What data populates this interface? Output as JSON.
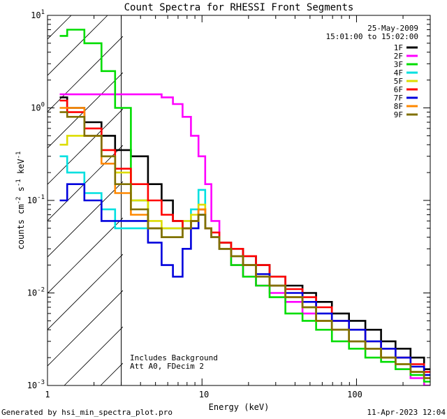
{
  "chart_data": {
    "type": "line",
    "title": "Count Spectra for RHESSI Front Segments",
    "xlabel": "Energy (keV)",
    "ylabel": "counts cm-2 s-1 keV-1",
    "xscale": "log",
    "yscale": "log",
    "xlim": [
      1,
      300
    ],
    "ylim": [
      0.001,
      10
    ],
    "x_tick_labels": [
      "1",
      "10",
      "100"
    ],
    "y_tick_labels": [
      "10-3",
      "10-2",
      "10-1",
      "100",
      "101"
    ],
    "date": "25-May-2009",
    "time_range": "15:01:00 to 15:02:00",
    "shaded_region_below_keV": 3,
    "annotation_lines": [
      "Includes Background",
      "Att A0, FDecim 2"
    ],
    "legend_position": "top-right",
    "energies_keV": [
      1.2,
      1.5,
      2,
      2.5,
      3,
      4,
      5,
      6,
      7,
      8,
      9,
      10,
      11,
      12,
      14,
      17,
      20,
      25,
      30,
      40,
      50,
      60,
      80,
      100,
      130,
      160,
      200,
      250,
      300
    ],
    "series": [
      {
        "name": "1F",
        "color": "#000000",
        "values": [
          1.3,
          1.0,
          0.7,
          0.5,
          0.35,
          0.3,
          0.15,
          0.1,
          0.06,
          0.05,
          0.06,
          0.08,
          0.05,
          0.04,
          0.035,
          0.03,
          0.025,
          0.02,
          0.015,
          0.012,
          0.01,
          0.008,
          0.006,
          0.005,
          0.004,
          0.003,
          0.0025,
          0.002,
          0.0015
        ]
      },
      {
        "name": "2F",
        "color": "#ff00ff",
        "values": [
          1.4,
          1.4,
          1.4,
          1.4,
          1.4,
          1.4,
          1.4,
          1.3,
          1.1,
          0.8,
          0.5,
          0.3,
          0.15,
          0.06,
          0.03,
          0.02,
          0.015,
          0.012,
          0.01,
          0.008,
          0.006,
          0.005,
          0.004,
          0.003,
          0.0025,
          0.002,
          0.0015,
          0.0012,
          0.001
        ]
      },
      {
        "name": "3F",
        "color": "#00dd00",
        "values": [
          6,
          7,
          5,
          2.5,
          1.0,
          0.1,
          0.05,
          0.04,
          0.04,
          0.05,
          0.06,
          0.07,
          0.05,
          0.04,
          0.03,
          0.02,
          0.015,
          0.012,
          0.009,
          0.006,
          0.005,
          0.004,
          0.003,
          0.0025,
          0.002,
          0.0018,
          0.0015,
          0.0013,
          0.0011
        ]
      },
      {
        "name": "4F",
        "color": "#00e0e0",
        "values": [
          0.3,
          0.2,
          0.12,
          0.08,
          0.05,
          0.05,
          0.05,
          0.05,
          0.05,
          0.06,
          0.08,
          0.13,
          0.05,
          0.04,
          0.03,
          0.025,
          0.02,
          0.015,
          0.012,
          0.009,
          0.007,
          0.005,
          0.004,
          0.003,
          0.0025,
          0.002,
          0.0017,
          0.0014,
          0.0012
        ]
      },
      {
        "name": "5F",
        "color": "#dddd00",
        "values": [
          0.4,
          0.5,
          0.5,
          0.3,
          0.2,
          0.1,
          0.06,
          0.05,
          0.05,
          0.06,
          0.07,
          0.09,
          0.05,
          0.04,
          0.03,
          0.025,
          0.02,
          0.015,
          0.012,
          0.009,
          0.007,
          0.005,
          0.004,
          0.003,
          0.0025,
          0.002,
          0.0017,
          0.0014,
          0.0012
        ]
      },
      {
        "name": "6F",
        "color": "#ff0000",
        "values": [
          1.2,
          0.9,
          0.6,
          0.35,
          0.22,
          0.15,
          0.1,
          0.07,
          0.06,
          0.05,
          0.06,
          0.08,
          0.05,
          0.045,
          0.035,
          0.03,
          0.025,
          0.02,
          0.015,
          0.011,
          0.009,
          0.007,
          0.005,
          0.004,
          0.003,
          0.0025,
          0.002,
          0.0017,
          0.0014
        ]
      },
      {
        "name": "7F",
        "color": "#0000dd",
        "values": [
          0.1,
          0.15,
          0.1,
          0.06,
          0.06,
          0.06,
          0.035,
          0.02,
          0.015,
          0.03,
          0.05,
          0.07,
          0.05,
          0.04,
          0.03,
          0.025,
          0.02,
          0.016,
          0.012,
          0.01,
          0.008,
          0.006,
          0.005,
          0.004,
          0.003,
          0.0025,
          0.002,
          0.0016,
          0.0013
        ]
      },
      {
        "name": "8F",
        "color": "#ff8800",
        "values": [
          1.0,
          1.0,
          0.5,
          0.25,
          0.12,
          0.07,
          0.05,
          0.04,
          0.04,
          0.05,
          0.06,
          0.08,
          0.05,
          0.04,
          0.03,
          0.025,
          0.02,
          0.015,
          0.012,
          0.009,
          0.007,
          0.005,
          0.004,
          0.003,
          0.0025,
          0.002,
          0.0017,
          0.0014,
          0.0012
        ]
      },
      {
        "name": "9F",
        "color": "#807000",
        "values": [
          0.9,
          0.8,
          0.5,
          0.3,
          0.15,
          0.08,
          0.05,
          0.04,
          0.04,
          0.05,
          0.06,
          0.07,
          0.05,
          0.04,
          0.03,
          0.025,
          0.02,
          0.015,
          0.012,
          0.009,
          0.007,
          0.005,
          0.004,
          0.003,
          0.0025,
          0.002,
          0.0017,
          0.0014,
          0.0012
        ]
      }
    ]
  },
  "footer": {
    "generated_by": "Generated by hsi_min_spectra_plot.pro",
    "timestamp": "11-Apr-2023 12:04"
  }
}
